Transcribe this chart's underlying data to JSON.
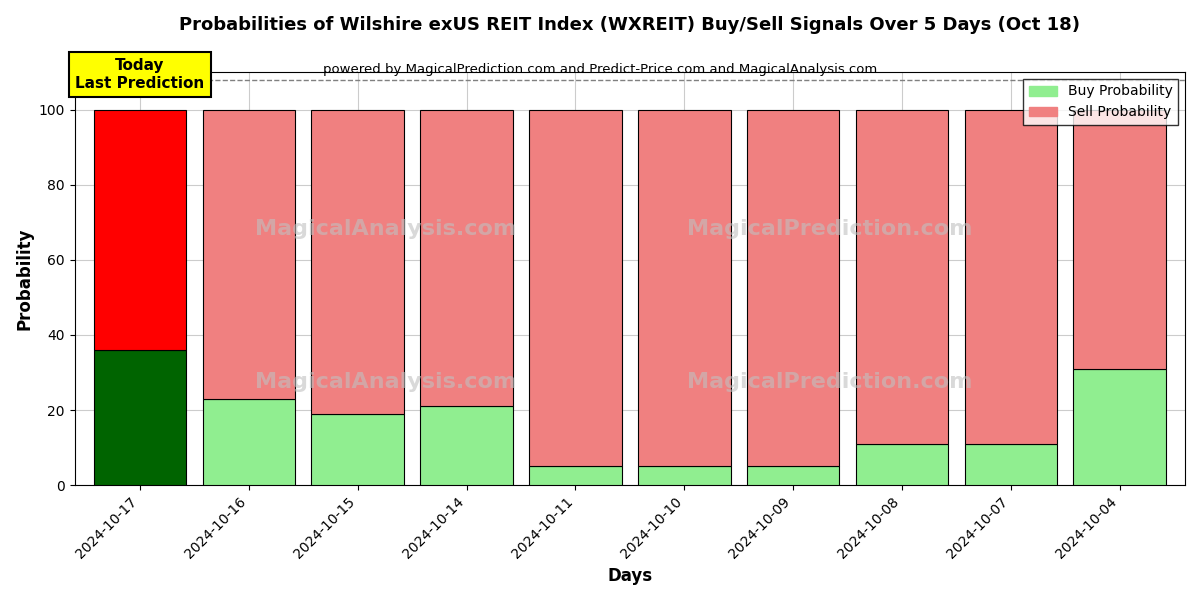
{
  "title": "Probabilities of Wilshire exUS REIT Index (WXREIT) Buy/Sell Signals Over 5 Days (Oct 18)",
  "subtitle": "powered by MagicalPrediction.com and Predict-Price.com and MagicalAnalysis.com",
  "xlabel": "Days",
  "ylabel": "Probability",
  "categories": [
    "2024-10-17",
    "2024-10-16",
    "2024-10-15",
    "2024-10-14",
    "2024-10-11",
    "2024-10-10",
    "2024-10-09",
    "2024-10-08",
    "2024-10-07",
    "2024-10-04"
  ],
  "buy_values": [
    36,
    23,
    19,
    21,
    5,
    5,
    5,
    11,
    11,
    31
  ],
  "sell_values": [
    64,
    77,
    81,
    79,
    95,
    95,
    95,
    89,
    89,
    69
  ],
  "today_buy_color": "#006400",
  "today_sell_color": "#FF0000",
  "buy_color": "#90EE90",
  "sell_color": "#F08080",
  "today_label": "Today\nLast Prediction",
  "legend_buy": "Buy Probability",
  "legend_sell": "Sell Probability",
  "ylim": [
    0,
    110
  ],
  "yticks": [
    0,
    20,
    40,
    60,
    80,
    100
  ],
  "dashed_line_y": 108,
  "bg_color": "#ffffff",
  "grid_color": "#cccccc",
  "bar_edge_color": "#000000",
  "bar_width": 0.85
}
